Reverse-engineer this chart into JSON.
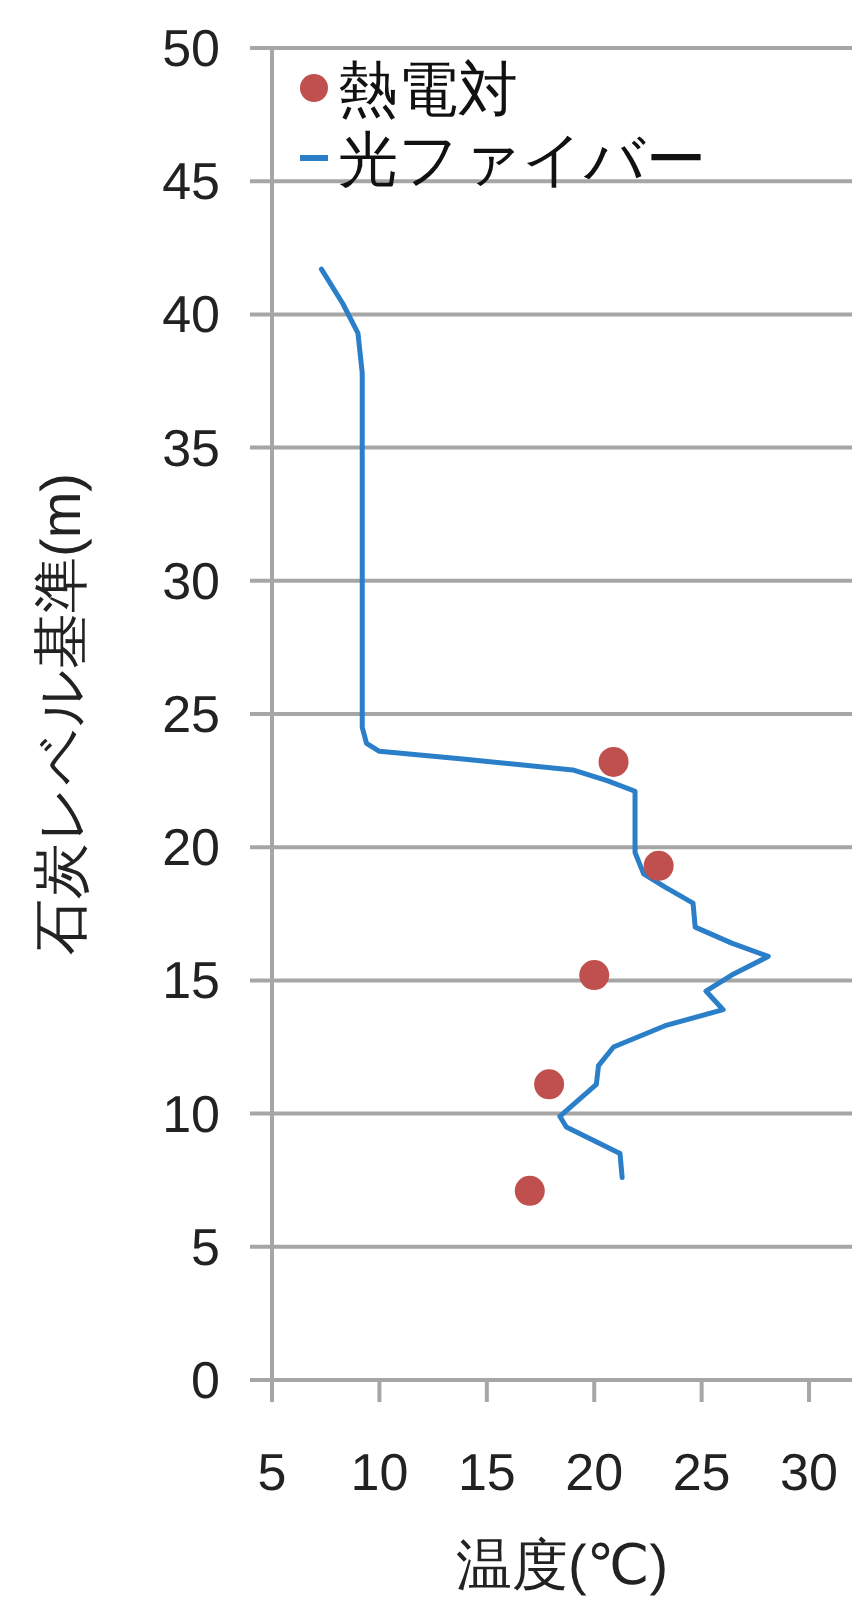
{
  "chart_data": {
    "type": "scatter",
    "xlabel": "温度(℃)",
    "ylabel": "石炭レベル基準(m)",
    "xlim": [
      5,
      32
    ],
    "ylim": [
      0,
      50
    ],
    "xticks": [
      5,
      10,
      15,
      20,
      25,
      30
    ],
    "yticks": [
      0,
      5,
      10,
      15,
      20,
      25,
      30,
      35,
      40,
      45,
      50
    ],
    "grid": "y",
    "legend": "top left",
    "series": [
      {
        "name": "熱電対",
        "marker": "circle",
        "color": "#c0504d",
        "x": [
          20.9,
          23.0,
          20.0,
          17.9,
          17.0
        ],
        "values": [
          23.2,
          19.3,
          15.2,
          11.1,
          7.1
        ]
      },
      {
        "name": "光ファイバー",
        "type": "line",
        "marker": "none",
        "color": "#2a7fc8",
        "x": [
          7.3,
          8.3,
          9.0,
          9.2,
          9.2,
          9.4,
          10.0,
          14.0,
          19.0,
          20.6,
          21.9,
          21.9,
          21.9,
          22.3,
          23.3,
          24.6,
          24.7,
          26.4,
          28.1,
          26.4,
          25.2,
          26.0,
          23.3,
          20.9,
          20.2,
          20.1,
          18.4,
          18.7,
          21.2,
          21.3
        ],
        "values": [
          41.7,
          40.4,
          39.3,
          37.8,
          24.5,
          23.9,
          23.6,
          23.3,
          22.9,
          22.5,
          22.1,
          20.8,
          19.8,
          19.0,
          18.5,
          17.9,
          17.0,
          16.4,
          15.9,
          15.2,
          14.6,
          13.9,
          13.3,
          12.5,
          11.8,
          11.1,
          9.9,
          9.5,
          8.5,
          7.6
        ]
      }
    ]
  }
}
